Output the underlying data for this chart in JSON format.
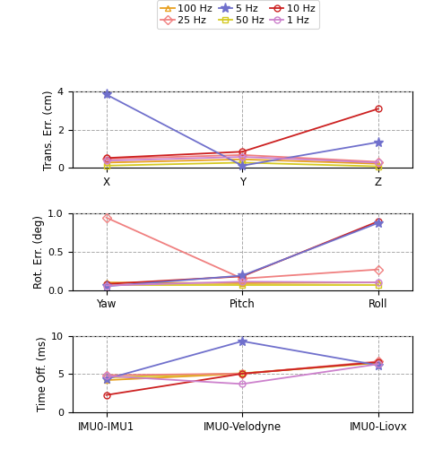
{
  "panel1": {
    "ylabel": "Trans. Err. (cm)",
    "xlabels": [
      "X",
      "Y",
      "Z"
    ],
    "ylim": [
      0,
      4
    ],
    "yticks": [
      0,
      2,
      4
    ],
    "data": {
      "100Hz": [
        0.28,
        0.45,
        0.22
      ],
      "50Hz": [
        0.12,
        0.28,
        0.08
      ],
      "25Hz": [
        0.48,
        0.68,
        0.32
      ],
      "10Hz": [
        0.52,
        0.85,
        3.1
      ],
      "5Hz": [
        3.85,
        0.12,
        1.35
      ],
      "1Hz": [
        0.38,
        0.58,
        0.28
      ]
    }
  },
  "panel2": {
    "ylabel": "Rot. Err. (deg)",
    "xlabels": [
      "Yaw",
      "Pitch",
      "Roll"
    ],
    "ylim": [
      0,
      1.0
    ],
    "yticks": [
      0.0,
      0.5,
      1.0
    ],
    "data": {
      "100Hz": [
        0.1,
        0.09,
        0.1
      ],
      "50Hz": [
        0.07,
        0.07,
        0.07
      ],
      "25Hz": [
        0.95,
        0.15,
        0.27
      ],
      "10Hz": [
        0.08,
        0.18,
        0.9
      ],
      "5Hz": [
        0.05,
        0.19,
        0.88
      ],
      "1Hz": [
        0.06,
        0.11,
        0.1
      ]
    }
  },
  "panel3": {
    "ylabel": "Time Off. (ms)",
    "xlabels": [
      "IMU0-IMU1",
      "IMU0-Velodyne",
      "IMU0-Liovx"
    ],
    "ylim": [
      0,
      10
    ],
    "yticks": [
      0,
      5,
      10
    ],
    "data": {
      "100Hz": [
        4.2,
        5.05,
        6.55
      ],
      "50Hz": [
        4.55,
        5.1,
        6.45
      ],
      "25Hz": [
        4.85,
        5.05,
        6.65
      ],
      "10Hz": [
        2.25,
        5.05,
        6.55
      ],
      "5Hz": [
        4.35,
        9.3,
        6.15
      ],
      "1Hz": [
        4.75,
        3.7,
        6.3
      ]
    }
  },
  "series_order": [
    "100Hz",
    "50Hz",
    "25Hz",
    "10Hz",
    "5Hz",
    "1Hz"
  ],
  "legend_labels": {
    "100Hz": "100 Hz",
    "50Hz": "50 Hz",
    "25Hz": "25 Hz",
    "10Hz": "10 Hz",
    "5Hz": "5 Hz",
    "1Hz": "1 Hz"
  },
  "colors": {
    "100Hz": "#E8A020",
    "50Hz": "#D4C820",
    "25Hz": "#F08080",
    "10Hz": "#CC2020",
    "5Hz": "#7070CC",
    "1Hz": "#CC80CC"
  },
  "markers": {
    "100Hz": "^",
    "50Hz": "s",
    "25Hz": "D",
    "10Hz": "o",
    "5Hz": "*",
    "1Hz": "o"
  },
  "markersizes": {
    "100Hz": 5,
    "50Hz": 4.5,
    "25Hz": 5,
    "10Hz": 5,
    "5Hz": 8,
    "1Hz": 5
  },
  "markerface": {
    "100Hz": "none",
    "50Hz": "none",
    "25Hz": "none",
    "10Hz": "none",
    "5Hz": "#7070CC",
    "1Hz": "none"
  },
  "legend_order": [
    "100Hz",
    "25Hz",
    "5Hz",
    "50Hz",
    "10Hz",
    "1Hz"
  ],
  "grid_color": "#AAAAAA",
  "grid_style": "--"
}
